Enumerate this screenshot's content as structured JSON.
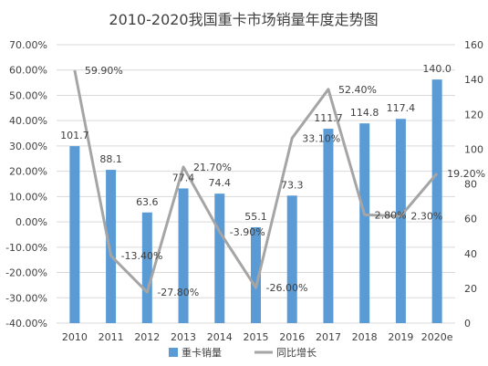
{
  "chart_data": {
    "type": "bar",
    "title": "2010-2020我国重卡市场销量年度走势图",
    "categories": [
      "2010",
      "2011",
      "2012",
      "2013",
      "2014",
      "2015",
      "2016",
      "2017",
      "2018",
      "2019",
      "2020e"
    ],
    "series": [
      {
        "name": "重卡销量",
        "type": "bar",
        "axis": "right",
        "color": "#5B9BD5",
        "values": [
          101.7,
          88.1,
          63.6,
          77.4,
          74.4,
          55.1,
          73.3,
          111.7,
          114.8,
          117.4,
          140.0
        ],
        "labels": [
          "101.7",
          "88.1",
          "63.6",
          "77.4",
          "74.4",
          "55.1",
          "73.3",
          "111.7",
          "114.8",
          "117.4",
          "140.0"
        ]
      },
      {
        "name": "同比增长",
        "type": "line",
        "axis": "left",
        "color": "#A5A5A5",
        "values": [
          59.9,
          -13.4,
          -27.8,
          21.7,
          -3.9,
          -26.0,
          33.1,
          52.4,
          2.8,
          2.3,
          19.2
        ],
        "labels": [
          "59.90%",
          "-13.40%",
          "-27.80%",
          "21.70%",
          "-3.90%",
          "-26.00%",
          "33.10%",
          "52.40%",
          "2.80%",
          "2.30%",
          "19.20%"
        ]
      }
    ],
    "y_left": {
      "min": -40,
      "max": 70,
      "step": 10,
      "ticks": [
        "-40.00%",
        "-30.00%",
        "-20.00%",
        "-10.00%",
        "0.00%",
        "10.00%",
        "20.00%",
        "30.00%",
        "40.00%",
        "50.00%",
        "60.00%",
        "70.00%"
      ]
    },
    "y_right": {
      "min": 0,
      "max": 160,
      "step": 20,
      "ticks": [
        "0",
        "20",
        "40",
        "60",
        "80",
        "100",
        "120",
        "140",
        "160"
      ]
    },
    "grid": true,
    "legend_position": "bottom"
  }
}
